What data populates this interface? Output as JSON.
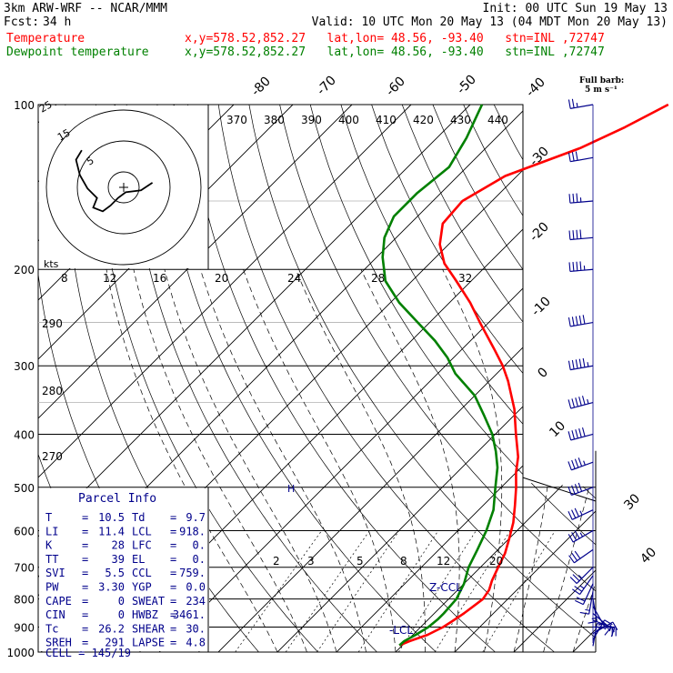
{
  "header": {
    "title": "3km ARW-WRF -- NCAR/MMM",
    "init": "Init: 00 UTC Sun 19 May 13",
    "fcst_label": "Fcst:",
    "fcst_value": "34 h",
    "valid": "Valid: 10 UTC Mon 20 May 13 (04 MDT Mon 20 May 13)",
    "temp_name": "Temperature",
    "dew_name": "Dewpoint temperature",
    "temp_loc": "x,y=578.52,852.27   lat,lon= 48.56, -93.40   stn=INL ,72747",
    "dew_loc": "x,y=578.52,852.27   lat,lon= 48.56, -93.40   stn=INL ,72747",
    "full_barb_1": "Full barb:",
    "full_barb_2": "5 m s⁻¹"
  },
  "colors": {
    "temperature": "#ff0000",
    "dewpoint": "#008000",
    "wind": "#00008b"
  },
  "chart_data": {
    "type": "line",
    "subtype": "skew-T log-p",
    "y_axis": {
      "scale": "log",
      "range": [
        1000,
        100
      ],
      "ticks": [
        100,
        200,
        300,
        400,
        500,
        600,
        700,
        800,
        900,
        1000
      ]
    },
    "isotherm_labels": [
      "-80",
      "-70",
      "-60",
      "-50",
      "-40",
      "-30",
      "-20",
      "-10",
      "0",
      "10",
      "30",
      "40"
    ],
    "theta_labels": [
      "370",
      "380",
      "390",
      "400",
      "410",
      "420",
      "430",
      "440"
    ],
    "theta_side_labels": [
      "290",
      "280",
      "270"
    ],
    "mixing_ratio_labels": [
      "2",
      "3",
      "5",
      "8",
      "12",
      "20"
    ],
    "series": [
      {
        "name": "Temperature",
        "points": [
          [
            972,
            9.5
          ],
          [
            955,
            10.5
          ],
          [
            930,
            12.5
          ],
          [
            900,
            13.8
          ],
          [
            880,
            14.3
          ],
          [
            850,
            15.0
          ],
          [
            820,
            15.5
          ],
          [
            800,
            15.8
          ],
          [
            770,
            15.3
          ],
          [
            740,
            14.2
          ],
          [
            700,
            13.0
          ],
          [
            660,
            11.8
          ],
          [
            620,
            10.0
          ],
          [
            580,
            8.0
          ],
          [
            540,
            5.4
          ],
          [
            500,
            2.5
          ],
          [
            470,
            0.0
          ],
          [
            440,
            -2.3
          ],
          [
            400,
            -6.5
          ],
          [
            360,
            -11.0
          ],
          [
            320,
            -16.8
          ],
          [
            300,
            -20.3
          ],
          [
            280,
            -24.5
          ],
          [
            250,
            -31.5
          ],
          [
            230,
            -36.5
          ],
          [
            210,
            -42.5
          ],
          [
            195,
            -47.5
          ],
          [
            180,
            -51.5
          ],
          [
            165,
            -54.5
          ],
          [
            150,
            -55.0
          ],
          [
            135,
            -52.0
          ],
          [
            120,
            -44.0
          ],
          [
            110,
            -40.0
          ],
          [
            100,
            -36.5
          ]
        ]
      },
      {
        "name": "Dewpoint temperature",
        "points": [
          [
            972,
            9.5
          ],
          [
            955,
            9.6
          ],
          [
            930,
            10.5
          ],
          [
            900,
            11.3
          ],
          [
            870,
            11.6
          ],
          [
            850,
            11.6
          ],
          [
            800,
            11.3
          ],
          [
            750,
            10.0
          ],
          [
            700,
            8.0
          ],
          [
            650,
            6.5
          ],
          [
            600,
            4.8
          ],
          [
            550,
            2.5
          ],
          [
            500,
            -1.0
          ],
          [
            460,
            -4.0
          ],
          [
            430,
            -7.0
          ],
          [
            400,
            -10.5
          ],
          [
            370,
            -15.0
          ],
          [
            340,
            -20.0
          ],
          [
            310,
            -27.0
          ],
          [
            290,
            -31.0
          ],
          [
            270,
            -36.0
          ],
          [
            250,
            -42.0
          ],
          [
            230,
            -48.5
          ],
          [
            210,
            -54.5
          ],
          [
            190,
            -59.0
          ],
          [
            175,
            -62.0
          ],
          [
            160,
            -64.0
          ],
          [
            145,
            -64.0
          ],
          [
            130,
            -63.0
          ],
          [
            115,
            -65.0
          ],
          [
            100,
            -68.0
          ]
        ]
      }
    ],
    "wind_profile": [
      [
        975,
        10,
        15
      ],
      [
        950,
        30,
        25
      ],
      [
        925,
        60,
        25
      ],
      [
        900,
        90,
        20
      ],
      [
        875,
        110,
        15
      ],
      [
        850,
        130,
        15
      ],
      [
        825,
        150,
        15
      ],
      [
        800,
        170,
        15
      ],
      [
        775,
        190,
        15
      ],
      [
        750,
        205,
        20
      ],
      [
        725,
        215,
        25
      ],
      [
        700,
        225,
        25
      ],
      [
        650,
        235,
        30
      ],
      [
        600,
        240,
        35
      ],
      [
        550,
        245,
        35
      ],
      [
        500,
        250,
        40
      ],
      [
        450,
        250,
        45
      ],
      [
        400,
        255,
        50
      ],
      [
        350,
        255,
        55
      ],
      [
        300,
        260,
        55
      ],
      [
        250,
        260,
        50
      ],
      [
        200,
        265,
        45
      ],
      [
        175,
        265,
        40
      ],
      [
        150,
        265,
        35
      ],
      [
        125,
        260,
        30
      ],
      [
        100,
        260,
        25
      ]
    ],
    "annotations": [
      "Z-CCL",
      "-LCL",
      "H"
    ],
    "hodograph": {
      "ring_labels": [
        "5",
        "15",
        "25"
      ],
      "axis_label": "kts",
      "axis_ticks": [
        "8",
        "12",
        "16",
        "20",
        "24",
        "28",
        "32"
      ],
      "trace": [
        [
          -1,
          -4
        ],
        [
          3,
          -10
        ],
        [
          4,
          -18
        ],
        [
          7,
          -22
        ],
        [
          11,
          -26
        ],
        [
          14,
          -30
        ],
        [
          12,
          -35
        ],
        [
          7,
          -33
        ],
        [
          2,
          -38
        ],
        [
          -5,
          -42
        ],
        [
          -13,
          -44
        ],
        [
          -18,
          -41
        ]
      ]
    }
  },
  "parcel": {
    "title": "Parcel Info",
    "rows": [
      {
        "l1": "T",
        "v1": "10.5",
        "l2": "Td",
        "v2": "9.7"
      },
      {
        "l1": "LI",
        "v1": "11.4",
        "l2": "LCL",
        "v2": "918."
      },
      {
        "l1": "K",
        "v1": "28",
        "l2": "LFC",
        "v2": "0."
      },
      {
        "l1": "TT",
        "v1": "39",
        "l2": "EL",
        "v2": "0."
      },
      {
        "l1": "SVI",
        "v1": "5.5",
        "l2": "CCL",
        "v2": "759."
      },
      {
        "l1": "PW",
        "v1": "3.30",
        "l2": "YGP",
        "v2": "0.0"
      },
      {
        "l1": "CAPE",
        "v1": "0",
        "l2": "SWEAT",
        "v2": "234"
      },
      {
        "l1": "CIN",
        "v1": "0",
        "l2": "HWBZ",
        "v2": "3461."
      },
      {
        "l1": "Tc",
        "v1": "26.2",
        "l2": "SHEAR",
        "v2": "30."
      },
      {
        "l1": "SREH",
        "v1": "291",
        "l2": "LAPSE",
        "v2": "4.8"
      }
    ],
    "cell": "CELL = 145/19"
  }
}
